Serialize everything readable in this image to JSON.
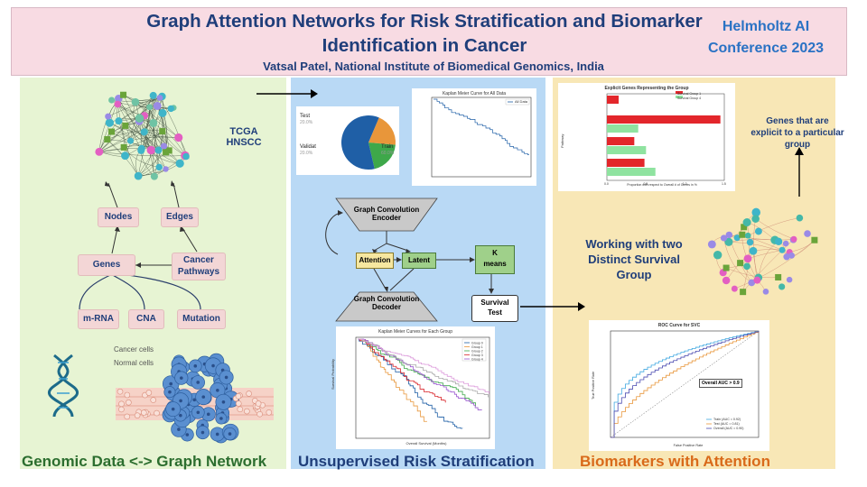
{
  "header": {
    "title_line1": "Graph Attention Networks for Risk Stratification and Biomarker",
    "title_line2": "Identification in Cancer",
    "author": "Vatsal Patel, National Institute of Biomedical Genomics, India",
    "conference_line1": "Helmholtz AI",
    "conference_line2": "Conference 2023"
  },
  "panel1": {
    "dataset_line1": "TCGA",
    "dataset_line2": "HNSCC",
    "nodes_label": "Nodes",
    "edges_label": "Edges",
    "genes_label": "Genes",
    "pathways_line1": "Cancer",
    "pathways_line2": "Pathways",
    "mrna_label": "m-RNA",
    "cna_label": "CNA",
    "mutation_label": "Mutation",
    "cancer_cells_label": "Cancer cells",
    "normal_cells_label": "Normal cells",
    "footer": "Genomic Data <-> Graph Network"
  },
  "panel2": {
    "pie": {
      "slices": [
        {
          "name": "Test",
          "pct_label": "20.0%",
          "value": 20,
          "color": "#e8963a"
        },
        {
          "name": "Validat",
          "pct_label": "20.0%",
          "value": 20,
          "color": "#3ea84a"
        },
        {
          "name": "Train",
          "pct_label": "60.0%",
          "value": 60,
          "color": "#1f5fa6"
        }
      ]
    },
    "km_all_title": "Kaplan Meier Curve for All Data",
    "km_all_legend": "All Data",
    "encoder_line1": "Graph Convolution",
    "encoder_line2": "Encoder",
    "decoder_line1": "Graph Convolution",
    "decoder_line2": "Decoder",
    "attention_label": "Attention",
    "latent_label": "Latent",
    "kmeans_line1": "K",
    "kmeans_line2": "means",
    "survival_line1": "Survival",
    "survival_line2": "Test",
    "km_group_title": "Kaplan Meier Curves for Each Group",
    "km_group_xlabel": "Overall Survival (Months)",
    "km_group_ylabel": "Survival Probability",
    "km_group_legend": [
      "Group 0",
      "Group 1",
      "Group 2",
      "Group 3",
      "Group 4"
    ],
    "footer": "Unsupervised Risk Stratification"
  },
  "panel3": {
    "bar_chart": {
      "title": "Explicit Genes Representing the Group",
      "legend": [
        "Survival Group 1",
        "Survival Group 4"
      ],
      "ylabel": "Pathway",
      "xlabel": "Proportion with respect to Overall # of Genes in %",
      "xlim": [
        0,
        1.5
      ],
      "x_ticks": [
        "0.0",
        "0.5",
        "1.0",
        "1.5"
      ],
      "colors": {
        "group1": "#e3262b",
        "group4": "#8fe3a0"
      },
      "bars": [
        {
          "group": "group1",
          "value": 0.15
        },
        {
          "group": "group1",
          "value": 1.45
        },
        {
          "group": "group4",
          "value": 0.4
        },
        {
          "group": "group1",
          "value": 0.35
        },
        {
          "group": "group4",
          "value": 0.5
        },
        {
          "group": "group1",
          "value": 0.48
        },
        {
          "group": "group4",
          "value": 0.62
        }
      ]
    },
    "explicit_text_line1": "Genes that are",
    "explicit_text_line2": "explicit to a particular",
    "explicit_text_line3": "group",
    "working_line1": "Working with two",
    "working_line2": "Distinct Survival",
    "working_line3": "Group",
    "roc": {
      "title": "ROC Curve for SVC",
      "xlabel": "False Positive Rate",
      "ylabel": "True Positive Rate",
      "annotation": "Overall AUC > 0.9",
      "legend": [
        "Train (AUC = 0.92)",
        "Test (AUC = 0.81)",
        "Overall (AUC = 0.90)"
      ]
    },
    "footer": "Biomarkers with Attention"
  }
}
